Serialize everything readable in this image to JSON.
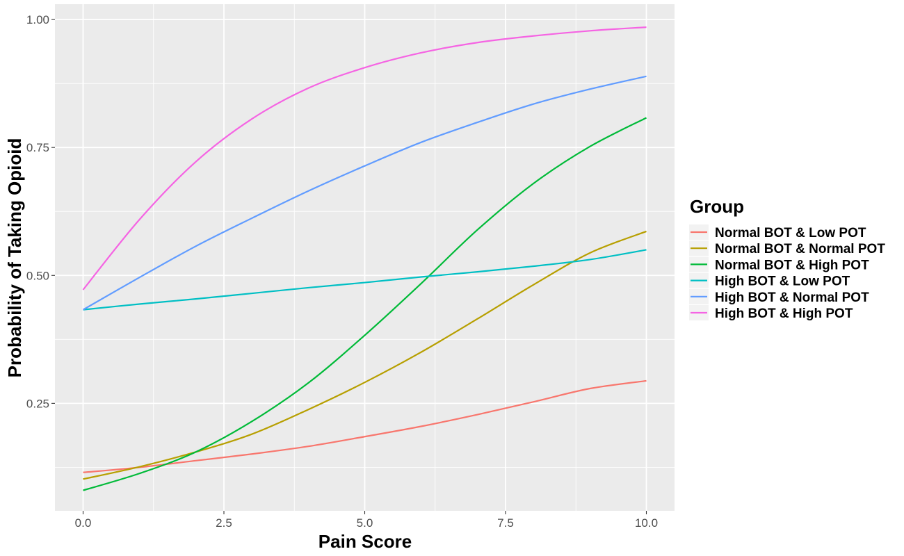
{
  "chart_data": {
    "type": "line",
    "xlabel": "Pain Score",
    "ylabel": "Probability of Taking Opioid",
    "xlim": [
      -0.5,
      10.5
    ],
    "ylim": [
      0.04,
      1.03
    ],
    "x_ticks": [
      "0.0",
      "2.5",
      "5.0",
      "7.5",
      "10.0"
    ],
    "y_ticks": [
      "0.25",
      "0.50",
      "0.75",
      "1.00"
    ],
    "grid": true,
    "legend_title": "Group",
    "legend_position": "right",
    "x": [
      0,
      1,
      2,
      3,
      4,
      5,
      6,
      7,
      8,
      9,
      10
    ],
    "series": [
      {
        "name": "Normal BOT & Low POT",
        "color": "#F8766D",
        "values": [
          0.115,
          0.125,
          0.138,
          0.151,
          0.166,
          0.185,
          0.205,
          0.228,
          0.253,
          0.279,
          0.294
        ]
      },
      {
        "name": "Normal BOT & Normal POT",
        "color": "#B79F00",
        "values": [
          0.102,
          0.126,
          0.155,
          0.19,
          0.238,
          0.291,
          0.35,
          0.415,
          0.482,
          0.544,
          0.586
        ]
      },
      {
        "name": "Normal BOT & High POT",
        "color": "#00BA38",
        "values": [
          0.08,
          0.113,
          0.155,
          0.215,
          0.29,
          0.383,
          0.484,
          0.589,
          0.68,
          0.752,
          0.808
        ]
      },
      {
        "name": "High BOT & Low POT",
        "color": "#00BFC4",
        "values": [
          0.433,
          0.444,
          0.454,
          0.465,
          0.476,
          0.486,
          0.497,
          0.507,
          0.518,
          0.531,
          0.55
        ]
      },
      {
        "name": "High BOT & Normal POT",
        "color": "#619CFF",
        "values": [
          0.433,
          0.496,
          0.557,
          0.612,
          0.665,
          0.714,
          0.76,
          0.799,
          0.835,
          0.864,
          0.889
        ]
      },
      {
        "name": "High BOT & High POT",
        "color": "#F564E3",
        "values": [
          0.472,
          0.609,
          0.722,
          0.806,
          0.866,
          0.906,
          0.935,
          0.955,
          0.968,
          0.978,
          0.985
        ]
      }
    ]
  }
}
